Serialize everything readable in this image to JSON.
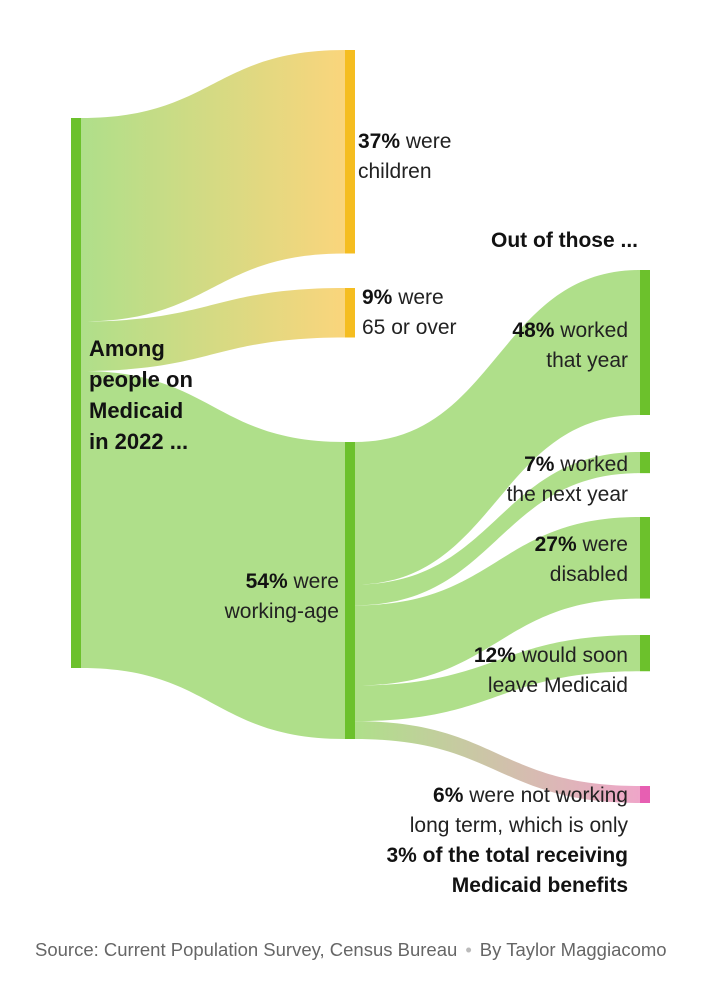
{
  "chart_data": {
    "type": "sankey",
    "colors": {
      "green": "#afdf8a",
      "green_bar": "#6cc12c",
      "yellow": "#fad57c",
      "yellow_bar": "#f5bd20",
      "pink_bar": "#e75fb2",
      "pink_flow": "#efa6c9"
    },
    "root": {
      "label_lines": [
        "Among",
        "people on",
        "Medicaid",
        "in 2022 ..."
      ],
      "value": 100
    },
    "groups": [
      {
        "id": "children",
        "value": 37,
        "pct": "37%",
        "text_lines": [
          "were",
          "children"
        ]
      },
      {
        "id": "65-or-over",
        "value": 9,
        "pct": "9%",
        "text_lines": [
          "were",
          "65 or over"
        ]
      },
      {
        "id": "working-age",
        "value": 54,
        "pct": "54%",
        "text_lines": [
          "were",
          "working-age"
        ]
      }
    ],
    "subheading": "Out of those ...",
    "working_age_breakdown": [
      {
        "id": "worked-that-year",
        "value": 48,
        "pct": "48%",
        "text_lines": [
          "worked",
          "that year"
        ]
      },
      {
        "id": "worked-next-year",
        "value": 7,
        "pct": "7%",
        "text_lines": [
          "worked",
          "the next year"
        ]
      },
      {
        "id": "disabled",
        "value": 27,
        "pct": "27%",
        "text_lines": [
          "were",
          "disabled"
        ]
      },
      {
        "id": "leave-medicaid",
        "value": 12,
        "pct": "12%",
        "text_lines": [
          "would soon",
          "leave Medicaid"
        ]
      },
      {
        "id": "not-working",
        "value": 6,
        "pct": "6%",
        "text_lines": [
          "were not working",
          "long term, which is only"
        ],
        "note_lines": [
          "3% of the total receiving",
          "Medicaid benefits"
        ]
      }
    ]
  },
  "footer": {
    "source": "Source: Current Population Survey, Census Bureau",
    "byline": "By Taylor Maggiacomo"
  }
}
